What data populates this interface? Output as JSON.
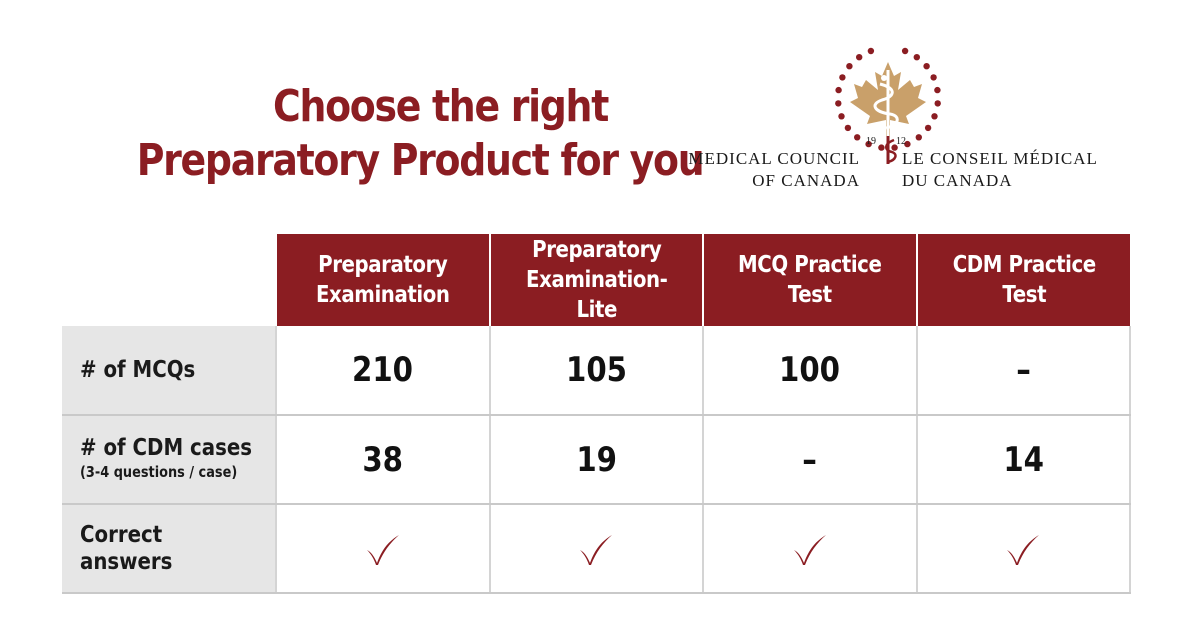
{
  "headline": {
    "line1": "Choose the right",
    "line2": "Preparatory Product for you"
  },
  "logo": {
    "year_left": "19",
    "year_right": "12",
    "en_line1": "MEDICAL COUNCIL",
    "en_line2": "OF CANADA",
    "fr_line1": "LE CONSEIL MÉDICAL",
    "fr_line2": "DU CANADA",
    "icon": "maple-leaf-caduceus-icon"
  },
  "colors": {
    "brand_red": "#8b1d22",
    "label_bg": "#e6e6e6",
    "leaf_gold": "#c9a06a"
  },
  "table": {
    "columns": [
      {
        "label": "Preparatory Examination"
      },
      {
        "label": "Preparatory Examination-Lite"
      },
      {
        "label": "MCQ Practice Test"
      },
      {
        "label": "CDM Practice Test"
      }
    ],
    "rows": [
      {
        "label": "# of MCQs",
        "sublabel": "",
        "values": [
          "210",
          "105",
          "100",
          "–"
        ]
      },
      {
        "label": "# of CDM cases",
        "sublabel": "(3-4 questions / case)",
        "values": [
          "38",
          "19",
          "–",
          "14"
        ]
      },
      {
        "label": "Correct answers",
        "sublabel": "",
        "values": [
          "✓",
          "✓",
          "✓",
          "✓"
        ]
      }
    ]
  }
}
